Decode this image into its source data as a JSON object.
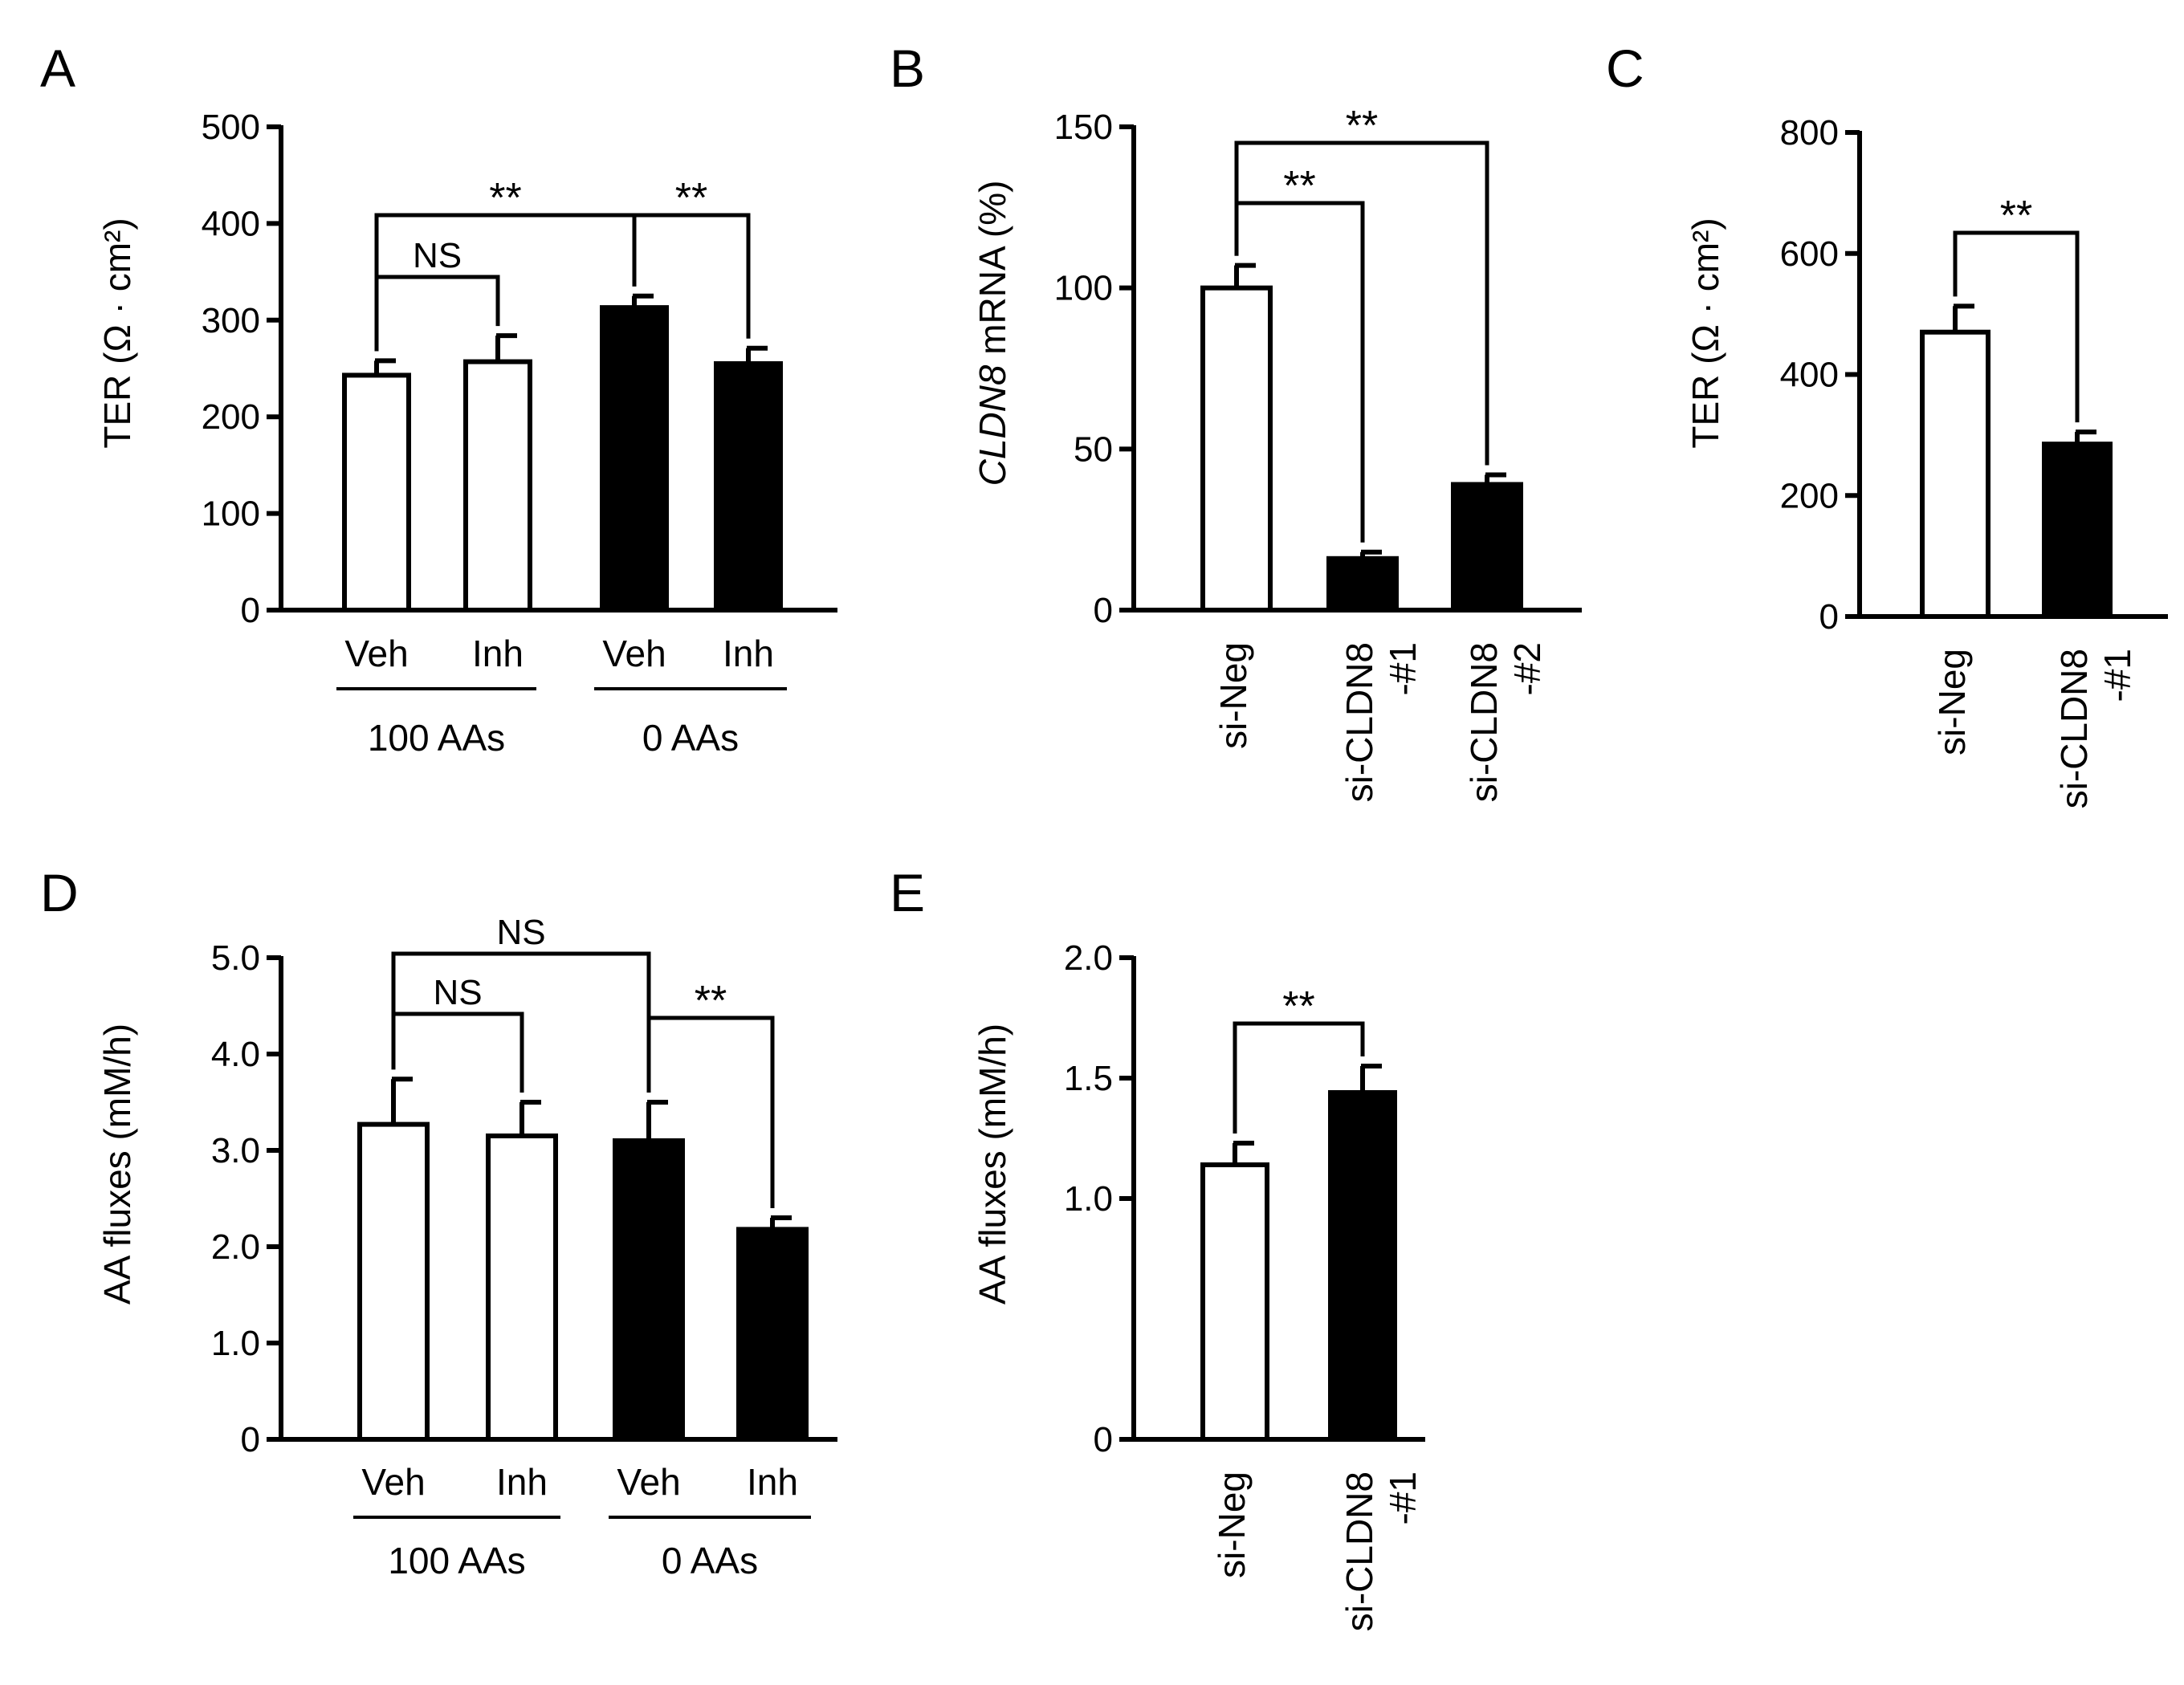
{
  "chart_data": [
    {
      "panel": "A",
      "type": "bar",
      "ylabel": "TER (Ω · cm²)",
      "ylim": [
        0,
        500
      ],
      "yticks": [
        0,
        100,
        200,
        300,
        400,
        500
      ],
      "ytick_labels": [
        "0",
        "100",
        "200",
        "300",
        "400",
        "500"
      ],
      "bars": [
        {
          "label": "Veh",
          "value": 243,
          "error": 15,
          "fill": "white"
        },
        {
          "label": "Inh",
          "value": 257,
          "error": 27,
          "fill": "white"
        },
        {
          "label": "Veh",
          "value": 313,
          "error": 12,
          "fill": "black"
        },
        {
          "label": "Inh",
          "value": 255,
          "error": 16,
          "fill": "black"
        }
      ],
      "groups": [
        {
          "label": "100 AAs",
          "from": 0,
          "to": 1
        },
        {
          "label": "0 AAs",
          "from": 2,
          "to": 3
        }
      ],
      "annotations": [
        {
          "a": 0,
          "b": 1,
          "text": "NS",
          "level": 1
        },
        {
          "a": 0,
          "b": 2,
          "text": "**",
          "level": 2
        },
        {
          "a": 2,
          "b": 3,
          "text": "**",
          "level": 2
        }
      ]
    },
    {
      "panel": "B",
      "type": "bar",
      "ylabel_italic": "CLDN8",
      "ylabel_rest": " mRNA (%)",
      "ylim": [
        0,
        150
      ],
      "yticks": [
        0,
        50,
        100,
        150
      ],
      "ytick_labels": [
        "0",
        "50",
        "100",
        "150"
      ],
      "bars": [
        {
          "label": "si-Neg",
          "label2": "",
          "value": 100,
          "error": 7,
          "fill": "white"
        },
        {
          "label": "si-CLDN8",
          "label2": "-#1",
          "value": 16,
          "error": 2,
          "fill": "black"
        },
        {
          "label": "si-CLDN8",
          "label2": "-#2",
          "value": 39,
          "error": 3,
          "fill": "black"
        }
      ],
      "annotations": [
        {
          "a": 0,
          "b": 1,
          "text": "**",
          "level": 1
        },
        {
          "a": 0,
          "b": 2,
          "text": "**",
          "level": 2
        }
      ]
    },
    {
      "panel": "C",
      "type": "bar",
      "ylabel": "TER (Ω · cm²)",
      "ylim": [
        0,
        800
      ],
      "yticks": [
        0,
        200,
        400,
        600,
        800
      ],
      "ytick_labels": [
        "0",
        "200",
        "400",
        "600",
        "800"
      ],
      "bars": [
        {
          "label": "si-Neg",
          "label2": "",
          "value": 470,
          "error": 43,
          "fill": "white"
        },
        {
          "label": "si-CLDN8",
          "label2": "-#1",
          "value": 285,
          "error": 20,
          "fill": "black"
        }
      ],
      "annotations": [
        {
          "a": 0,
          "b": 1,
          "text": "**",
          "level": 1
        }
      ]
    },
    {
      "panel": "D",
      "type": "bar",
      "ylabel": "AA fluxes (mM/h)",
      "ylim": [
        0,
        5
      ],
      "yticks": [
        0,
        1,
        2,
        3,
        4,
        5
      ],
      "ytick_labels": [
        "0",
        "1.0",
        "2.0",
        "3.0",
        "4.0",
        "5.0"
      ],
      "bars": [
        {
          "label": "Veh",
          "value": 3.27,
          "error": 0.47,
          "fill": "white"
        },
        {
          "label": "Inh",
          "value": 3.15,
          "error": 0.35,
          "fill": "white"
        },
        {
          "label": "Veh",
          "value": 3.1,
          "error": 0.4,
          "fill": "black"
        },
        {
          "label": "Inh",
          "value": 2.18,
          "error": 0.12,
          "fill": "black"
        }
      ],
      "groups": [
        {
          "label": "100 AAs",
          "from": 0,
          "to": 1
        },
        {
          "label": "0 AAs",
          "from": 2,
          "to": 3
        }
      ],
      "annotations": [
        {
          "a": 0,
          "b": 1,
          "text": "NS",
          "level": 1
        },
        {
          "a": 0,
          "b": 2,
          "text": "NS",
          "level": 2
        },
        {
          "a": 2,
          "b": 3,
          "text": "**",
          "level": 1
        }
      ]
    },
    {
      "panel": "E",
      "type": "bar",
      "ylabel": "AA fluxes (mM/h)",
      "ylim": [
        0,
        2
      ],
      "yticks": [
        0,
        1,
        1.5,
        2
      ],
      "ytick_labels": [
        "0",
        "1.0",
        "1.5",
        "2.0"
      ],
      "bars": [
        {
          "label": "si-Neg",
          "label2": "",
          "value": 1.14,
          "error": 0.09,
          "fill": "white"
        },
        {
          "label": "si-CLDN8",
          "label2": "-#1",
          "value": 1.44,
          "error": 0.11,
          "fill": "black"
        }
      ],
      "annotations": [
        {
          "a": 0,
          "b": 1,
          "text": "**",
          "level": 1
        }
      ]
    }
  ]
}
